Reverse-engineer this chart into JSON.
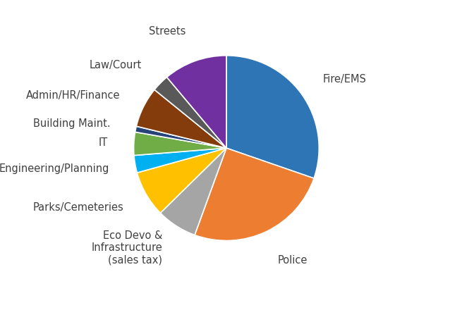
{
  "slices": [
    {
      "label": "Fire/EMS",
      "pct": 30,
      "color": "#2E75B6"
    },
    {
      "label": "Police",
      "pct": 25,
      "color": "#ED7D31"
    },
    {
      "label": "Eco Devo &\nInfrastructure\n(sales tax)",
      "pct": 7,
      "color": "#A5A5A5"
    },
    {
      "label": "Parks/Cemeteries",
      "pct": 8,
      "color": "#FFC000"
    },
    {
      "label": "Engineering/Planning",
      "pct": 3,
      "color": "#00B0F0"
    },
    {
      "label": "IT",
      "pct": 4,
      "color": "#70AD47"
    },
    {
      "label": "Building Maint.",
      "pct": 1,
      "color": "#264478"
    },
    {
      "label": "Admin/HR/Finance",
      "pct": 7,
      "color": "#843C0C"
    },
    {
      "label": "Law/Court",
      "pct": 3,
      "color": "#595959"
    },
    {
      "label": "Streets",
      "pct": 11,
      "color": "#7030A0"
    }
  ],
  "start_angle": 90,
  "figsize": [
    6.55,
    4.4
  ],
  "dpi": 100,
  "font_size": 10.5,
  "text_color": "#404040"
}
